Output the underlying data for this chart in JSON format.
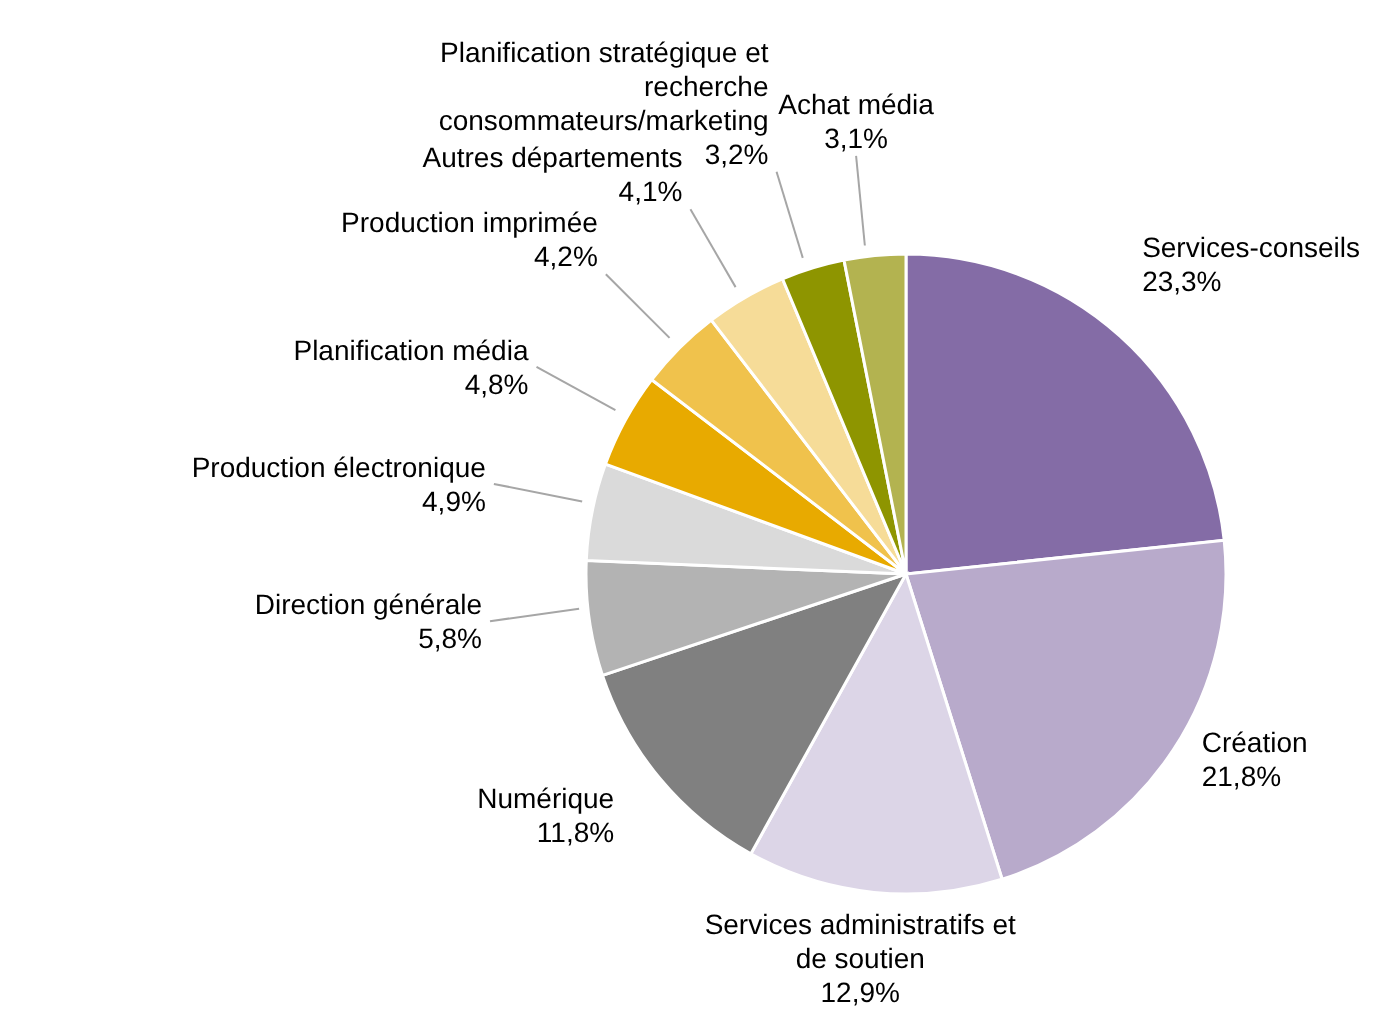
{
  "chart_data": {
    "type": "pie",
    "categories": [
      "Services-conseils",
      "Création",
      "Services administratifs et de soutien",
      "Numérique",
      "Direction générale",
      "Production électronique",
      "Planification média",
      "Production imprimée",
      "Autres départements",
      "Planification stratégique et recherche consommateurs/marketing",
      "Achat média"
    ],
    "values": [
      23.3,
      21.8,
      12.9,
      11.8,
      5.8,
      4.9,
      4.8,
      4.2,
      4.1,
      3.2,
      3.1
    ],
    "value_labels": [
      "23,3%",
      "21,8%",
      "12,9%",
      "11,8%",
      "5,8%",
      "4,9%",
      "4,8%",
      "4,2%",
      "4,1%",
      "3,2%",
      "3,1%"
    ],
    "colors": [
      "#846ca6",
      "#b8aacb",
      "#dcd5e7",
      "#808080",
      "#b3b3b3",
      "#dadada",
      "#e8aa00",
      "#f0c24c",
      "#f6dc98",
      "#8e9500",
      "#b3b350"
    ],
    "legend": false
  }
}
